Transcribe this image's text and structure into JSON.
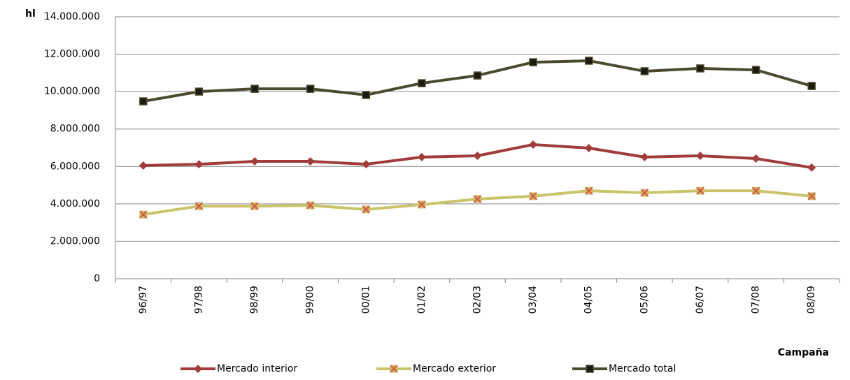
{
  "chart_data": {
    "type": "line",
    "y_label": "hl",
    "x_label": "Campaña",
    "categories": [
      "96/97",
      "97/98",
      "98/99",
      "99/00",
      "00/01",
      "01/02",
      "02/03",
      "03/04",
      "04/05",
      "05/06",
      "06/07",
      "07/08",
      "08/09"
    ],
    "series": [
      {
        "name": "Mercado interior",
        "color": "#a23b3b",
        "marker": "diamond",
        "values": [
          6050000,
          6120000,
          6270000,
          6270000,
          6120000,
          6500000,
          6570000,
          7170000,
          6980000,
          6500000,
          6570000,
          6420000,
          5940000
        ]
      },
      {
        "name": "Mercado exterior",
        "color": "#c9c36a",
        "marker": "x",
        "values": [
          3430000,
          3880000,
          3880000,
          3920000,
          3700000,
          3960000,
          4260000,
          4410000,
          4700000,
          4590000,
          4700000,
          4700000,
          4410000
        ]
      },
      {
        "name": "Mercado total",
        "color": "#4b4a2e",
        "marker": "square",
        "values": [
          9480000,
          10000000,
          10150000,
          10150000,
          9820000,
          10450000,
          10860000,
          11570000,
          11650000,
          11090000,
          11240000,
          11160000,
          10300000
        ]
      }
    ],
    "ylim": [
      0,
      14000000
    ],
    "yticks": [
      0,
      {
        "value": 2000000,
        "label": "2.000.000"
      },
      {
        "value": 4000000,
        "label": "4.000.000"
      },
      {
        "value": 6000000,
        "label": "6.000.000"
      },
      {
        "value": 8000000,
        "label": "8.000.000"
      },
      {
        "value": 10000000,
        "label": "10.000.000"
      },
      {
        "value": 12000000,
        "label": "12.000.000"
      },
      {
        "value": 14000000,
        "label": "14.000.000"
      }
    ],
    "grid": true,
    "legend": "bottom"
  }
}
